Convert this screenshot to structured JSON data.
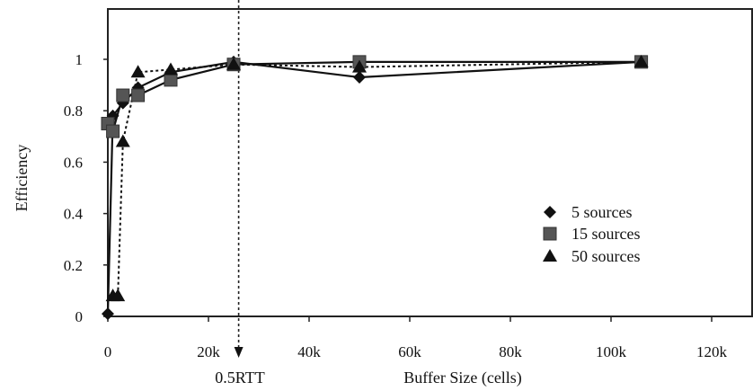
{
  "chart_data": {
    "type": "line",
    "title": "",
    "xlabel": "Buffer Size (cells)",
    "ylabel": "Efficiency",
    "xlim": [
      0,
      120000
    ],
    "ylim": [
      0,
      1.1
    ],
    "xticks": [
      0,
      20000,
      40000,
      60000,
      80000,
      100000,
      120000
    ],
    "xtick_labels": [
      "0",
      "20k",
      "40k",
      "60k",
      "80k",
      "100k",
      "120k"
    ],
    "yticks": [
      0,
      0.2,
      0.4,
      0.6,
      0.8,
      1
    ],
    "ytick_labels": [
      "0",
      "0.2",
      "0.4",
      "0.6",
      "0.8",
      "1"
    ],
    "grid": false,
    "legend_position": "right",
    "annotation": {
      "label": "0.5RTT",
      "x": 26000
    },
    "series": [
      {
        "name": "5 sources",
        "marker": "diamond",
        "line": "solid",
        "x": [
          0,
          1000,
          3000,
          6000,
          12500,
          25000,
          50000,
          106000
        ],
        "y": [
          0.01,
          0.78,
          0.83,
          0.89,
          0.95,
          0.99,
          0.93,
          0.99
        ]
      },
      {
        "name": "15 sources",
        "marker": "square",
        "line": "solid",
        "x": [
          0,
          1000,
          3000,
          6000,
          12500,
          25000,
          50000,
          106000
        ],
        "y": [
          0.75,
          0.72,
          0.86,
          0.86,
          0.92,
          0.98,
          0.99,
          0.99
        ]
      },
      {
        "name": "50 sources",
        "marker": "triangle",
        "line": "dotted",
        "x": [
          1000,
          2000,
          3000,
          6000,
          12500,
          25000,
          50000,
          106000
        ],
        "y": [
          0.08,
          0.08,
          0.68,
          0.95,
          0.96,
          0.98,
          0.97,
          0.99
        ]
      }
    ]
  }
}
